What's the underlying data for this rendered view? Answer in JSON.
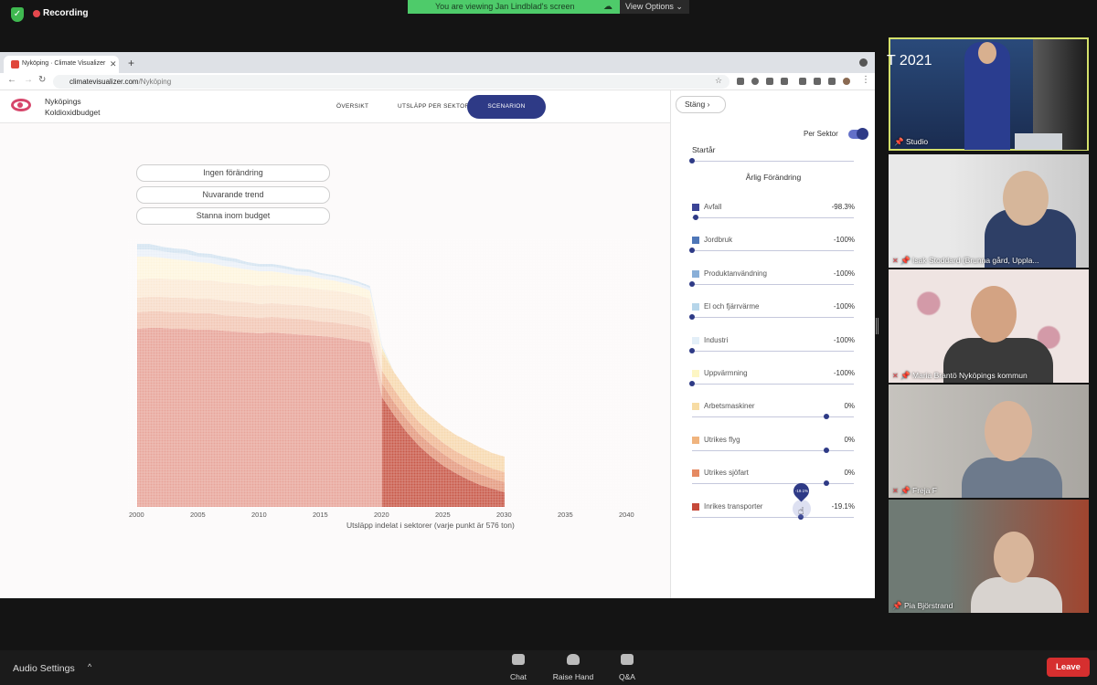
{
  "zoom": {
    "recording_label": "Recording",
    "share_banner": "You are viewing Jan Lindblad's screen",
    "view_options": "View Options ⌄",
    "audio_settings": "Audio Settings",
    "toolbar": [
      {
        "label": "Chat",
        "icon": "chat-icon"
      },
      {
        "label": "Raise Hand",
        "icon": "hand-icon"
      },
      {
        "label": "Q&A",
        "icon": "qa-icon"
      }
    ],
    "leave_label": "Leave",
    "participants": [
      {
        "name": "Studio",
        "year_text": "T 2021"
      },
      {
        "name": "Isak Stoddard (Brunna gård, Uppla..."
      },
      {
        "name": "Maria Brantö Nyköpings kommun"
      },
      {
        "name": "Freja F"
      },
      {
        "name": "Pia Björstrand"
      }
    ]
  },
  "browser": {
    "tab_title": "Nyköping · Climate Visualizer",
    "url_domain": "climatevisualizer.com",
    "url_path": "/Nyköping"
  },
  "app": {
    "title_line1": "Nyköpings",
    "title_line2": "Koldioxidbudget",
    "nav": [
      "ÖVERSIKT",
      "UTSLÄPP PER SEKTOR",
      "SCENARION"
    ],
    "scenario_buttons": [
      "Ingen förändring",
      "Nuvarande trend",
      "Stanna inom budget"
    ]
  },
  "chart_data": {
    "type": "area",
    "x_ticks": [
      "2000",
      "2005",
      "2010",
      "2015",
      "2020",
      "2025",
      "2030",
      "2035",
      "2040"
    ],
    "xlabel": "Utsläpp indelat i sektorer (varje punkt är 576 ton)",
    "xlim": [
      2000,
      2040
    ],
    "history_end": 2020,
    "projection_end": 2030,
    "series": [
      {
        "name": "Inrikes transporter",
        "color": "#e8a59a",
        "color_proj": "#c85a4a",
        "values": [
          195,
          196,
          196,
          195,
          195,
          194,
          194,
          193,
          192,
          191,
          190,
          191,
          190,
          189,
          188,
          187,
          186,
          184,
          182,
          180,
          120,
          100,
          82,
          67,
          55,
          45,
          37,
          30,
          24,
          20,
          16
        ]
      },
      {
        "name": "Utrikes sjöfart",
        "color": "#f2c7b5",
        "color_proj": "#e49a80",
        "values": [
          18,
          18,
          18,
          18,
          18,
          18,
          18,
          17,
          17,
          17,
          17,
          17,
          17,
          17,
          17,
          16,
          16,
          16,
          16,
          15,
          15,
          14,
          14,
          13,
          13,
          13,
          12,
          12,
          12,
          11,
          11
        ]
      },
      {
        "name": "Utrikes flyg",
        "color": "#f7dbc8",
        "color_proj": "#f0b896",
        "values": [
          16,
          16,
          16,
          16,
          16,
          16,
          16,
          16,
          16,
          16,
          15,
          15,
          15,
          15,
          15,
          15,
          15,
          15,
          15,
          14,
          14,
          14,
          13,
          13,
          13,
          12,
          12,
          12,
          12,
          11,
          11
        ]
      },
      {
        "name": "Arbetsmaskiner",
        "color": "#fbead6",
        "color_proj": "#f7d9b0",
        "values": [
          20,
          20,
          20,
          20,
          20,
          20,
          20,
          20,
          20,
          20,
          20,
          20,
          20,
          20,
          20,
          20,
          20,
          20,
          19,
          19,
          19,
          19,
          19,
          18,
          18,
          18,
          18,
          18,
          17,
          17,
          17
        ]
      },
      {
        "name": "Uppvärmning",
        "color": "#fdf5de",
        "color_proj": "#f7e6bc",
        "values": [
          25,
          24,
          23,
          22,
          21,
          20,
          19,
          18,
          17,
          16,
          16,
          15,
          14,
          13,
          13,
          12,
          11,
          10,
          10,
          9,
          6,
          0,
          0,
          0,
          0,
          0,
          0,
          0,
          0,
          0,
          0
        ]
      },
      {
        "name": "Industri",
        "color": "#eaf0f8",
        "color_proj": "#eaf0f8",
        "values": [
          8,
          8,
          7,
          7,
          7,
          6,
          6,
          6,
          6,
          5,
          5,
          5,
          5,
          4,
          4,
          4,
          4,
          4,
          3,
          3,
          2,
          0,
          0,
          0,
          0,
          0,
          0,
          0,
          0,
          0,
          0
        ]
      },
      {
        "name": "El och fjärrvärme",
        "color": "#d4e4f1",
        "color_proj": "#d4e4f1",
        "values": [
          6,
          6,
          5,
          5,
          5,
          4,
          4,
          4,
          4,
          3,
          3,
          3,
          3,
          3,
          3,
          2,
          2,
          2,
          2,
          2,
          1,
          0,
          0,
          0,
          0,
          0,
          0,
          0,
          0,
          0,
          0
        ]
      }
    ]
  },
  "panel": {
    "close_label": "Stäng ›",
    "per_sektor_label": "Per Sektor",
    "per_sektor_on": true,
    "startar_label": "Startår",
    "startar_value_fraction": 0,
    "arlig_label": "Årlig Förändring",
    "sectors": [
      {
        "name": "Avfall",
        "color": "#3b4496",
        "value": "-98.3%",
        "fraction": 0.02
      },
      {
        "name": "Jordbruk",
        "color": "#4f77b8",
        "value": "-100%",
        "fraction": 0.0
      },
      {
        "name": "Produktanvändning",
        "color": "#89afd8",
        "value": "-100%",
        "fraction": 0.0
      },
      {
        "name": "El och fjärrvärme",
        "color": "#b7d6ea",
        "value": "-100%",
        "fraction": 0.0
      },
      {
        "name": "Industri",
        "color": "#e3eff8",
        "value": "-100%",
        "fraction": 0.0
      },
      {
        "name": "Uppvärmning",
        "color": "#fdf6c4",
        "value": "-100%",
        "fraction": 0.0
      },
      {
        "name": "Arbetsmaskiner",
        "color": "#f7dca4",
        "value": "0%",
        "fraction": 0.83
      },
      {
        "name": "Utrikes flyg",
        "color": "#f0b47e",
        "value": "0%",
        "fraction": 0.83
      },
      {
        "name": "Utrikes sjöfart",
        "color": "#e58a62",
        "value": "0%",
        "fraction": 0.83
      },
      {
        "name": "Inrikes transporter",
        "color": "#c64a3a",
        "value": "-19.1%",
        "fraction": 0.67
      }
    ],
    "tooltip_value": "-19.1%"
  }
}
